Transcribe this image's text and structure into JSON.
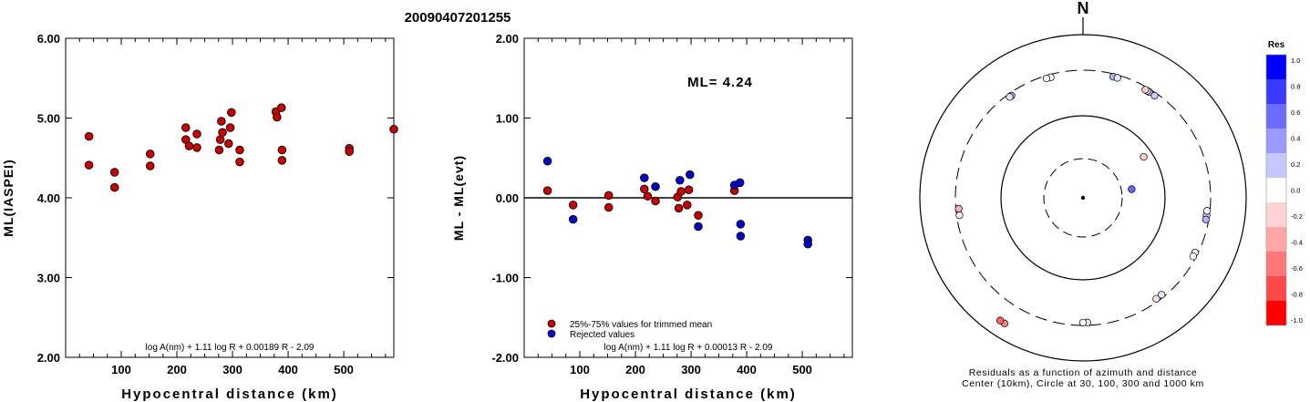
{
  "page_title": "20090407201255",
  "chart_data": [
    {
      "type": "scatter",
      "title": "",
      "xlabel": "Hypocentral distance (km)",
      "ylabel": "ML(IASPEI)",
      "xlim": [
        0,
        590
      ],
      "ylim": [
        2.0,
        6.0
      ],
      "yticks": [
        "2.00",
        "3.00",
        "4.00",
        "5.00",
        "6.00"
      ],
      "grid": false,
      "annotation": "log A(nm) + 1.11 log R + 0.00189 R - 2.09",
      "series": [
        {
          "color": "#cc0000",
          "points": [
            [
              42,
              4.77
            ],
            [
              42,
              4.41
            ],
            [
              88,
              4.32
            ],
            [
              88,
              4.13
            ],
            [
              152,
              4.55
            ],
            [
              152,
              4.4
            ],
            [
              216,
              4.88
            ],
            [
              216,
              4.73
            ],
            [
              222,
              4.65
            ],
            [
              236,
              4.8
            ],
            [
              236,
              4.63
            ],
            [
              276,
              4.6
            ],
            [
              278,
              4.73
            ],
            [
              280,
              4.96
            ],
            [
              282,
              4.82
            ],
            [
              293,
              4.68
            ],
            [
              296,
              4.88
            ],
            [
              298,
              5.07
            ],
            [
              313,
              4.6
            ],
            [
              313,
              4.45
            ],
            [
              378,
              5.08
            ],
            [
              380,
              5.01
            ],
            [
              388,
              5.13
            ],
            [
              389,
              4.6
            ],
            [
              389,
              4.47
            ],
            [
              510,
              4.62
            ],
            [
              510,
              4.58
            ],
            [
              590,
              4.86
            ]
          ]
        }
      ]
    },
    {
      "type": "scatter",
      "title": "",
      "xlabel": "Hypocentral distance (km)",
      "ylabel": "ML - ML(evt)",
      "xlim": [
        0,
        590
      ],
      "ylim": [
        -2.0,
        2.0
      ],
      "yticks": [
        "-2.00",
        "-1.00",
        "0.00",
        "1.00",
        "2.00"
      ],
      "grid": false,
      "reference_line": 0.0,
      "ml_label": "ML= 4.24",
      "annotation": "log A(nm) + 1.11 log R + 0.00013 R - 2.09",
      "legend_position": "bottom-left",
      "series": [
        {
          "name": "25%-75% values for trimmed mean",
          "color": "#cc0000",
          "points": [
            [
              42,
              0.09
            ],
            [
              88,
              -0.09
            ],
            [
              152,
              0.03
            ],
            [
              152,
              -0.12
            ],
            [
              216,
              0.11
            ],
            [
              222,
              0.02
            ],
            [
              236,
              -0.04
            ],
            [
              276,
              0.01
            ],
            [
              278,
              -0.13
            ],
            [
              282,
              0.08
            ],
            [
              293,
              -0.09
            ],
            [
              296,
              0.1
            ],
            [
              313,
              -0.22
            ],
            [
              378,
              0.09
            ]
          ]
        },
        {
          "name": "Rejected values",
          "color": "#0000cc",
          "points": [
            [
              42,
              0.46
            ],
            [
              88,
              -0.27
            ],
            [
              216,
              0.25
            ],
            [
              236,
              0.14
            ],
            [
              280,
              0.22
            ],
            [
              298,
              0.29
            ],
            [
              313,
              -0.36
            ],
            [
              378,
              0.16
            ],
            [
              388,
              0.19
            ],
            [
              389,
              -0.33
            ],
            [
              389,
              -0.48
            ],
            [
              510,
              -0.53
            ],
            [
              510,
              -0.58
            ]
          ]
        }
      ]
    },
    {
      "type": "polar-scatter",
      "title": "N",
      "caption_lines": [
        "Residuals as a function of azimuth and distance",
        "Center (10km), Circle at 30, 100, 300 and 1000 km"
      ],
      "rings_km": [
        30,
        100,
        300,
        1000
      ],
      "colorbar": {
        "title": "Res",
        "ticks": [
          "1.0",
          "0.8",
          "0.6",
          "0.4",
          "0.2",
          "0.0",
          "-0.2",
          "-0.4",
          "-0.6",
          "-0.8",
          "-1.0"
        ],
        "colors": [
          "#0000ff",
          "#3a3aff",
          "#6b6bff",
          "#9a9aff",
          "#c7c7ff",
          "#ffffff",
          "#ffd3d3",
          "#ffa6a6",
          "#ff7777",
          "#ff4848",
          "#ff0000"
        ]
      },
      "stations": [
        {
          "azimuth_deg": 32,
          "distance_km": 280,
          "res": 0.22
        },
        {
          "azimuth_deg": 31,
          "distance_km": 280,
          "res": 0.1
        },
        {
          "azimuth_deg": 30,
          "distance_km": 280,
          "res": -0.2
        },
        {
          "azimuth_deg": 35,
          "distance_km": 280,
          "res": 0.2
        },
        {
          "azimuth_deg": 14,
          "distance_km": 280,
          "res": 0.3
        },
        {
          "azimuth_deg": 16,
          "distance_km": 280,
          "res": 0.1
        },
        {
          "azimuth_deg": 345,
          "distance_km": 280,
          "res": 0.0
        },
        {
          "azimuth_deg": 343,
          "distance_km": 280,
          "res": 0.05
        },
        {
          "azimuth_deg": 325,
          "distance_km": 280,
          "res": 0.3
        },
        {
          "azimuth_deg": 324,
          "distance_km": 280,
          "res": 0.1
        },
        {
          "azimuth_deg": 98,
          "distance_km": 280,
          "res": 0.2
        },
        {
          "azimuth_deg": 96,
          "distance_km": 280,
          "res": 0.05
        },
        {
          "azimuth_deg": 100,
          "distance_km": 280,
          "res": 0.3
        },
        {
          "azimuth_deg": 116,
          "distance_km": 280,
          "res": 0.05
        },
        {
          "azimuth_deg": 118,
          "distance_km": 280,
          "res": 0.0
        },
        {
          "azimuth_deg": 144,
          "distance_km": 280,
          "res": -0.1
        },
        {
          "azimuth_deg": 141,
          "distance_km": 280,
          "res": 0.1
        },
        {
          "azimuth_deg": 178,
          "distance_km": 280,
          "res": -0.1
        },
        {
          "azimuth_deg": 180,
          "distance_km": 280,
          "res": -0.05
        },
        {
          "azimuth_deg": 265,
          "distance_km": 280,
          "res": -0.3
        },
        {
          "azimuth_deg": 262,
          "distance_km": 280,
          "res": -0.1
        },
        {
          "azimuth_deg": 212,
          "distance_km": 600,
          "res": -0.5
        },
        {
          "azimuth_deg": 214,
          "distance_km": 600,
          "res": -0.6
        },
        {
          "azimuth_deg": 56,
          "distance_km": 78,
          "res": -0.2
        },
        {
          "azimuth_deg": 80,
          "distance_km": 40,
          "res": 0.6
        }
      ]
    }
  ]
}
